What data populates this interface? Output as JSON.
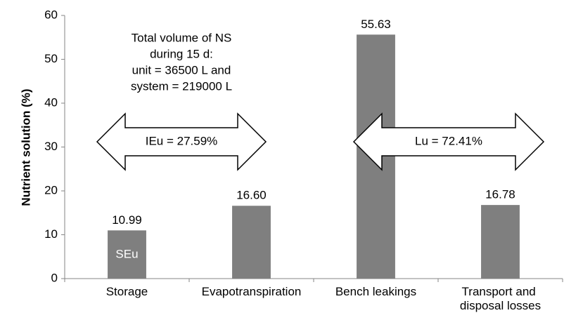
{
  "chart_data": {
    "type": "bar",
    "y_label": "Nutrient solution (%)",
    "categories": [
      "Storage",
      "Evapotranspiration",
      "Bench leakings",
      "Transport and disposal losses"
    ],
    "values": [
      10.99,
      16.6,
      55.63,
      16.78
    ],
    "value_labels": [
      "10.99",
      "16.60",
      "55.63",
      "16.78"
    ],
    "color": "#7f7f7f",
    "ylim": [
      0,
      60
    ],
    "yticks": [
      0,
      10,
      20,
      30,
      40,
      50,
      60
    ],
    "grid": false,
    "annotations": {
      "total_volume": [
        "Total volume of NS",
        "during 15 d:",
        "unit = 36500 L and",
        "system = 219000 L"
      ],
      "ieu": "IEu = 27.59%",
      "lu": "Lu = 72.41%",
      "seu": "SEu"
    }
  }
}
